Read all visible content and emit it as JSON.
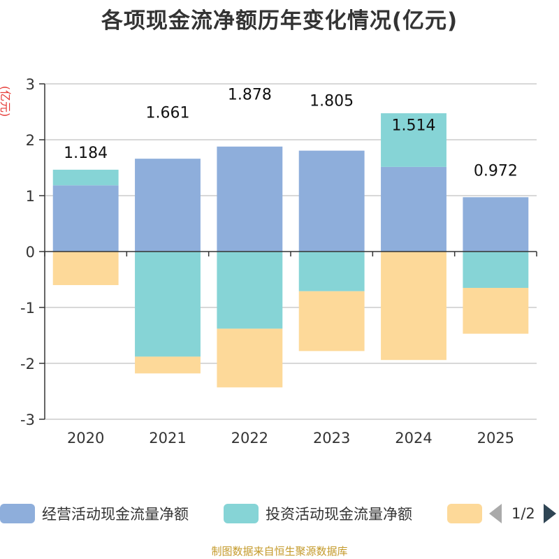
{
  "chart_data": {
    "type": "bar",
    "stacked": true,
    "title": "各项现金流净额历年变化情况(亿元)",
    "ylabel": "(亿元)",
    "categories": [
      "2020",
      "2021",
      "2022",
      "2023",
      "2024",
      "2025"
    ],
    "ylim": [
      -3,
      3
    ],
    "yticks": [
      3,
      2,
      1,
      0,
      -1,
      -2,
      -3
    ],
    "grid": true,
    "legend_position": "bottom",
    "series": [
      {
        "name": "经营活动现金流量净额",
        "color": "#8eaedb",
        "values": [
          1.184,
          1.661,
          1.878,
          1.805,
          1.514,
          0.972
        ],
        "data_labels": [
          "1.184",
          "1.661",
          "1.878",
          "1.805",
          "1.514",
          "0.972"
        ]
      },
      {
        "name": "投资活动现金流量净额",
        "color": "#86d4d6",
        "values": [
          0.28,
          -1.88,
          -1.38,
          -0.71,
          0.96,
          -0.65
        ]
      },
      {
        "name": "",
        "color": "#fdd999",
        "values": [
          -0.6,
          -0.3,
          -1.05,
          -1.07,
          -1.94,
          -0.82
        ]
      }
    ]
  },
  "legend": {
    "page": "1/2"
  },
  "source": "制图数据来自恒生聚源数据库"
}
